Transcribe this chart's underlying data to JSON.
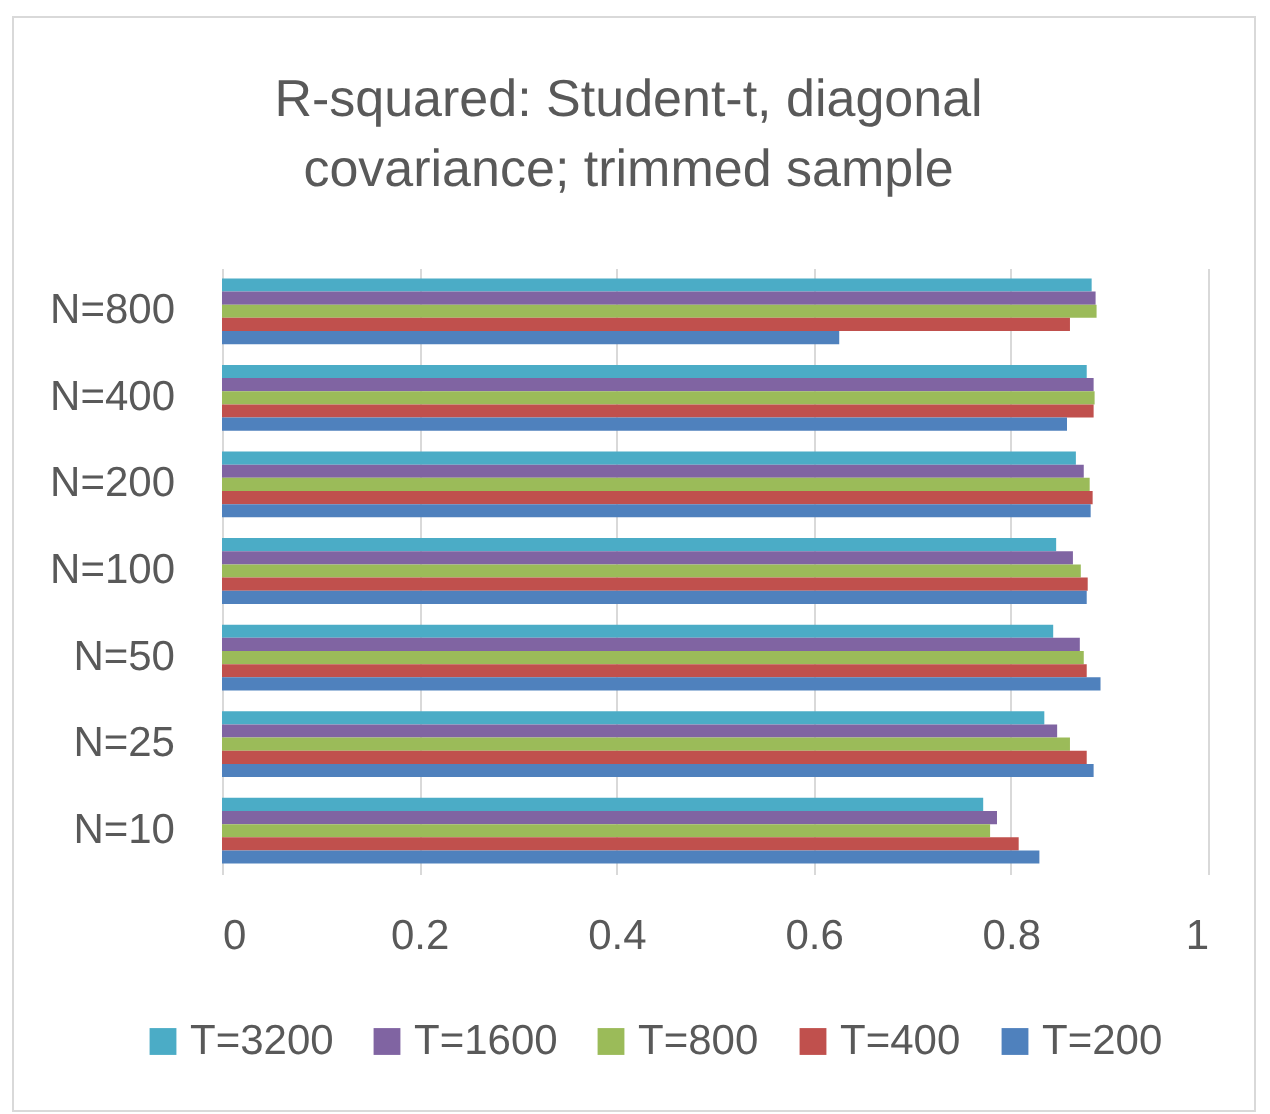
{
  "chart_data": {
    "type": "bar",
    "orientation": "horizontal",
    "title": "R-squared: Student-t, diagonal covariance; trimmed sample",
    "categories": [
      "N=800",
      "N=400",
      "N=200",
      "N=100",
      "N=50",
      "N=25",
      "N=10"
    ],
    "series": [
      {
        "name": "T=3200",
        "color": "#4bacc6",
        "values": [
          0.882,
          0.877,
          0.866,
          0.846,
          0.843,
          0.834,
          0.772
        ]
      },
      {
        "name": "T=1600",
        "color": "#8064a2",
        "values": [
          0.886,
          0.884,
          0.874,
          0.863,
          0.87,
          0.847,
          0.786
        ]
      },
      {
        "name": "T=800",
        "color": "#9bbb59",
        "values": [
          0.887,
          0.885,
          0.88,
          0.871,
          0.874,
          0.86,
          0.779
        ]
      },
      {
        "name": "T=400",
        "color": "#c0504d",
        "values": [
          0.86,
          0.884,
          0.883,
          0.878,
          0.877,
          0.877,
          0.808
        ]
      },
      {
        "name": "T=200",
        "color": "#4f81bd",
        "values": [
          0.626,
          0.857,
          0.881,
          0.877,
          0.891,
          0.884,
          0.829
        ]
      }
    ],
    "xlim": [
      0,
      1
    ],
    "xticks": [
      0,
      0.2,
      0.4,
      0.6,
      0.8,
      1
    ],
    "grid": "x",
    "legend": "bottom"
  }
}
